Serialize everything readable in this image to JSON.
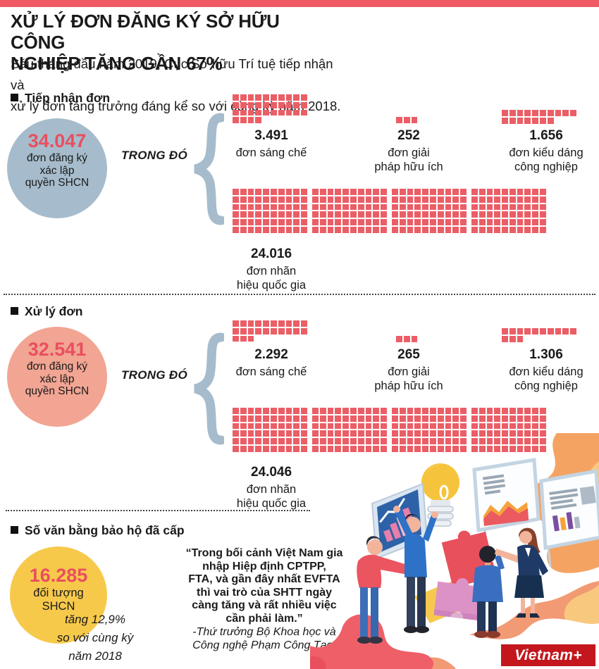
{
  "colors": {
    "accent_red": "#F05A65",
    "waffle_red": "#EB5E66",
    "blue_gray": "#A6BCCC",
    "salmon": "#F1A592",
    "yellow": "#F7C94B",
    "number_red": "#E94F5E",
    "logo_red": "#C3171D"
  },
  "header": {
    "title_lines": [
      "XỬ LÝ ĐƠN ĐĂNG KÝ SỞ HỮU CÔNG",
      "NGHIỆP TĂNG GẦN 67%"
    ],
    "subtitle_lines": [
      "Sáu tháng đầu năm 2019, Cục Sở hữu Trí tuệ tiếp nhận và",
      "xử lý đơn tăng trưởng đáng kể so với cùng kỳ năm 2018."
    ]
  },
  "labels": {
    "in_which": "TRONG ĐÓ"
  },
  "sections": {
    "received": {
      "label": "Tiếp nhận đơn",
      "total": {
        "value": "34.047",
        "lines": [
          "đơn đăng ký",
          "xác lập",
          "quyền SHCN"
        ]
      },
      "items": [
        {
          "value": "3.491",
          "lines": [
            "đơn sáng chế"
          ],
          "squares": [
            10,
            10,
            10,
            4
          ]
        },
        {
          "value": "252",
          "lines": [
            "đơn giải",
            "pháp hữu ích"
          ],
          "squares": [
            3
          ]
        },
        {
          "value": "1.656",
          "lines": [
            "đơn kiểu dáng",
            "công nghiệp"
          ],
          "squares": [
            10,
            7
          ]
        }
      ],
      "trademark": {
        "value": "24.016",
        "lines": [
          "đơn nhãn",
          "hiệu quốc gia"
        ],
        "grid": {
          "blocks": 4,
          "rows": 6,
          "cols": 10
        }
      }
    },
    "processed": {
      "label": "Xử lý đơn",
      "total": {
        "value": "32.541",
        "lines": [
          "đơn đăng ký",
          "xác lập",
          "quyền SHCN"
        ]
      },
      "items": [
        {
          "value": "2.292",
          "lines": [
            "đơn sáng chế"
          ],
          "squares": [
            10,
            10,
            3
          ]
        },
        {
          "value": "265",
          "lines": [
            "đơn giải",
            "pháp hữu ích"
          ],
          "squares": [
            3
          ]
        },
        {
          "value": "1.306",
          "lines": [
            "đơn kiểu dáng",
            "công nghiệp"
          ],
          "squares": [
            10,
            3
          ]
        }
      ],
      "trademark": {
        "value": "24.046",
        "lines": [
          "đơn nhãn",
          "hiệu quốc gia"
        ],
        "grid": {
          "blocks": 4,
          "rows": 6,
          "cols": 10
        }
      }
    },
    "granted": {
      "label": "Số văn bằng bảo hộ đã cấp",
      "total": {
        "value": "16.285",
        "lines": [
          "đối tượng",
          "SHCN"
        ]
      },
      "growth_lines": [
        "tăng 12,9%",
        "so với cùng kỳ",
        "năm 2018"
      ]
    }
  },
  "quote": {
    "lines": [
      "“Trong bối cảnh Việt Nam gia",
      "nhập Hiệp định CPTPP,",
      "FTA, và gần đây nhất EVFTA",
      "thì vai trò của SHTT ngày",
      "càng tăng và rất nhiều việc",
      "cần phải làm.”"
    ],
    "attribution": [
      "-Thứ trưởng Bộ Khoa học và",
      "Công nghệ Phạm Công Tạc-"
    ]
  },
  "logo": {
    "text": "Vietnam+"
  },
  "chart_data": [
    {
      "type": "pictograph",
      "title": "Tiếp nhận đơn",
      "total": {
        "label": "đơn đăng ký xác lập quyền SHCN",
        "value": 34047
      },
      "unit_per_square": 100,
      "categories": [
        "đơn sáng chế",
        "đơn giải pháp hữu ích",
        "đơn kiểu dáng công nghiệp",
        "đơn nhãn hiệu quốc gia"
      ],
      "values": [
        3491,
        252,
        1656,
        24016
      ]
    },
    {
      "type": "pictograph",
      "title": "Xử lý đơn",
      "total": {
        "label": "đơn đăng ký xác lập quyền SHCN",
        "value": 32541
      },
      "unit_per_square": 100,
      "categories": [
        "đơn sáng chế",
        "đơn giải pháp hữu ích",
        "đơn kiểu dáng công nghiệp",
        "đơn nhãn hiệu quốc gia"
      ],
      "values": [
        2292,
        265,
        1306,
        24046
      ]
    },
    {
      "type": "stat",
      "title": "Số văn bằng bảo hộ đã cấp",
      "value": 16285,
      "label": "đối tượng SHCN",
      "note": "tăng 12,9% so với cùng kỳ năm 2018"
    }
  ]
}
